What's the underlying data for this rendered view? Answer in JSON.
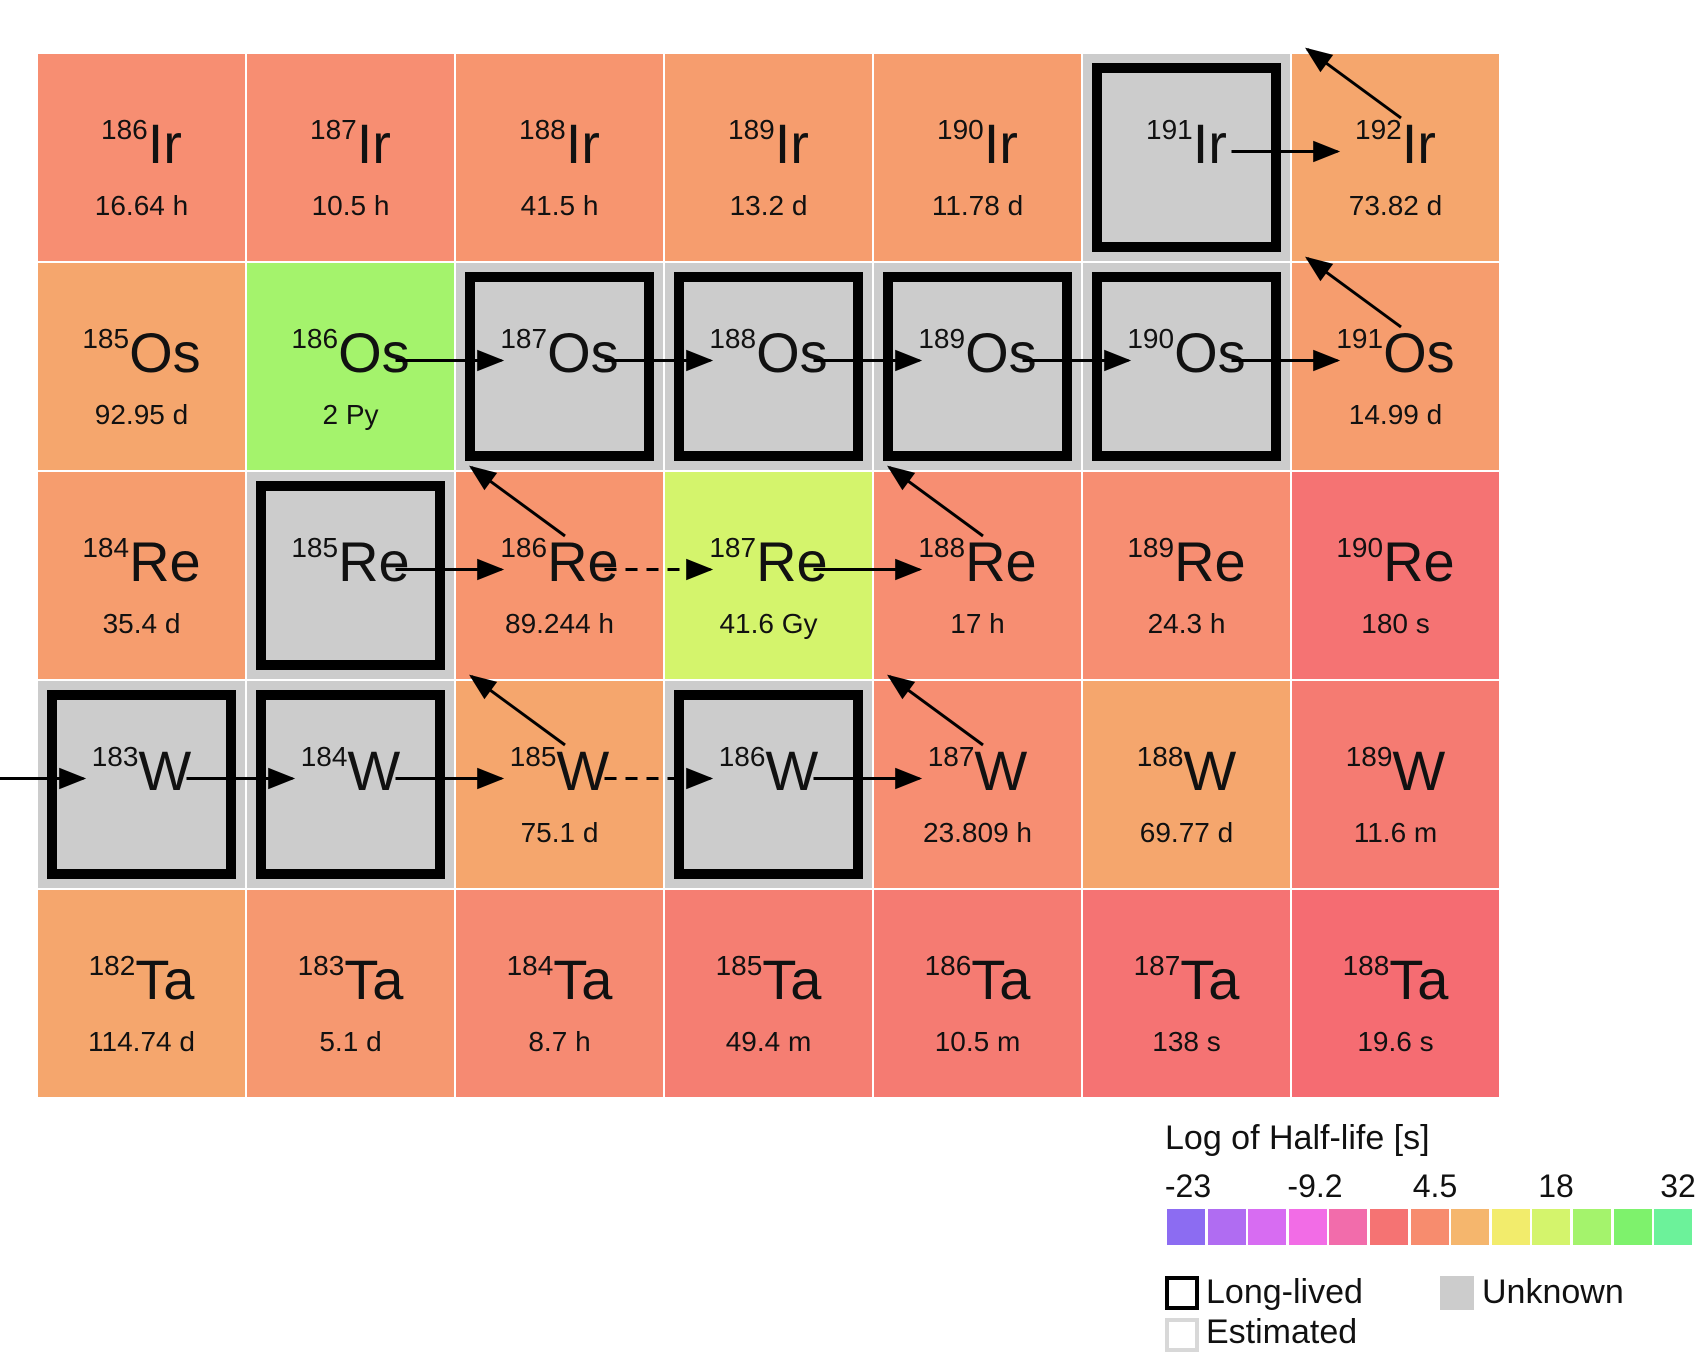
{
  "diagram": {
    "rows": [
      {
        "element": "Ir",
        "cells": [
          {
            "mass": "186",
            "halflife": "16.64 h",
            "color": "#f78e72"
          },
          {
            "mass": "187",
            "halflife": "10.5 h",
            "color": "#f78e72"
          },
          {
            "mass": "188",
            "halflife": "41.5 h",
            "color": "#f7956f"
          },
          {
            "mass": "189",
            "halflife": "13.2 d",
            "color": "#f69d6e"
          },
          {
            "mass": "190",
            "halflife": "11.78 d",
            "color": "#f69d6e"
          },
          {
            "mass": "191",
            "halflife": "",
            "color": "#cccccc",
            "unknown": true,
            "longlived": true
          },
          {
            "mass": "192",
            "halflife": "73.82 d",
            "color": "#f5a66d"
          }
        ]
      },
      {
        "element": "Os",
        "cells": [
          {
            "mass": "185",
            "halflife": "92.95 d",
            "color": "#f5a66d"
          },
          {
            "mass": "186",
            "halflife": "2 Py",
            "color": "#a4f36c"
          },
          {
            "mass": "187",
            "halflife": "",
            "color": "#cccccc",
            "unknown": true,
            "longlived": true
          },
          {
            "mass": "188",
            "halflife": "",
            "color": "#cccccc",
            "unknown": true,
            "longlived": true
          },
          {
            "mass": "189",
            "halflife": "",
            "color": "#cccccc",
            "unknown": true,
            "longlived": true
          },
          {
            "mass": "190",
            "halflife": "",
            "color": "#cccccc",
            "unknown": true,
            "longlived": true
          },
          {
            "mass": "191",
            "halflife": "14.99 d",
            "color": "#f69d6e"
          }
        ]
      },
      {
        "element": "Re",
        "cells": [
          {
            "mass": "184",
            "halflife": "35.4 d",
            "color": "#f69d6e"
          },
          {
            "mass": "185",
            "halflife": "",
            "color": "#cccccc",
            "unknown": true,
            "longlived": true
          },
          {
            "mass": "186",
            "halflife": "89.244 h",
            "color": "#f7956f"
          },
          {
            "mass": "187",
            "halflife": "41.6 Gy",
            "color": "#d4f46c"
          },
          {
            "mass": "188",
            "halflife": "17 h",
            "color": "#f78e72"
          },
          {
            "mass": "189",
            "halflife": "24.3 h",
            "color": "#f78e72"
          },
          {
            "mass": "190",
            "halflife": "180 s",
            "color": "#f57373"
          }
        ]
      },
      {
        "element": "W",
        "cells": [
          {
            "mass": "183",
            "halflife": "",
            "color": "#cccccc",
            "unknown": true,
            "longlived": true
          },
          {
            "mass": "184",
            "halflife": "",
            "color": "#cccccc",
            "unknown": true,
            "longlived": true
          },
          {
            "mass": "185",
            "halflife": "75.1 d",
            "color": "#f5a66d"
          },
          {
            "mass": "186",
            "halflife": "",
            "color": "#cccccc",
            "unknown": true,
            "longlived": true
          },
          {
            "mass": "187",
            "halflife": "23.809 h",
            "color": "#f78e72"
          },
          {
            "mass": "188",
            "halflife": "69.77 d",
            "color": "#f5a66d"
          },
          {
            "mass": "189",
            "halflife": "11.6 m",
            "color": "#f57b72"
          }
        ]
      },
      {
        "element": "Ta",
        "cells": [
          {
            "mass": "182",
            "halflife": "114.74 d",
            "color": "#f5a66d"
          },
          {
            "mass": "183",
            "halflife": "5.1 d",
            "color": "#f69870"
          },
          {
            "mass": "184",
            "halflife": "8.7 h",
            "color": "#f68a72"
          },
          {
            "mass": "185",
            "halflife": "49.4 m",
            "color": "#f57e72"
          },
          {
            "mass": "186",
            "halflife": "10.5 m",
            "color": "#f57b72"
          },
          {
            "mass": "187",
            "halflife": "138 s",
            "color": "#f57373"
          },
          {
            "mass": "188",
            "halflife": "19.6 s",
            "color": "#f56c72"
          }
        ]
      }
    ],
    "arrows": [
      {
        "from": [
          3,
          -1
        ],
        "to": [
          3,
          0
        ],
        "dashed": false
      },
      {
        "from": [
          3,
          0
        ],
        "to": [
          3,
          1
        ],
        "dashed": false
      },
      {
        "from": [
          3,
          1
        ],
        "to": [
          3,
          2
        ],
        "dashed": false
      },
      {
        "from": [
          3,
          2
        ],
        "to": [
          3,
          3
        ],
        "dashed": true
      },
      {
        "from": [
          3,
          3
        ],
        "to": [
          3,
          4
        ],
        "dashed": false
      },
      {
        "from": [
          3,
          2
        ],
        "to": [
          2,
          1
        ],
        "dashed": false
      },
      {
        "from": [
          3,
          4
        ],
        "to": [
          2,
          3
        ],
        "dashed": false
      },
      {
        "from": [
          2,
          1
        ],
        "to": [
          2,
          2
        ],
        "dashed": false
      },
      {
        "from": [
          2,
          2
        ],
        "to": [
          2,
          3
        ],
        "dashed": true
      },
      {
        "from": [
          2,
          3
        ],
        "to": [
          2,
          4
        ],
        "dashed": false
      },
      {
        "from": [
          2,
          2
        ],
        "to": [
          1,
          1
        ],
        "dashed": false
      },
      {
        "from": [
          2,
          4
        ],
        "to": [
          1,
          3
        ],
        "dashed": false
      },
      {
        "from": [
          1,
          1
        ],
        "to": [
          1,
          2
        ],
        "dashed": false
      },
      {
        "from": [
          1,
          2
        ],
        "to": [
          1,
          3
        ],
        "dashed": false
      },
      {
        "from": [
          1,
          3
        ],
        "to": [
          1,
          4
        ],
        "dashed": false
      },
      {
        "from": [
          1,
          4
        ],
        "to": [
          1,
          5
        ],
        "dashed": false
      },
      {
        "from": [
          1,
          5
        ],
        "to": [
          1,
          6
        ],
        "dashed": false
      },
      {
        "from": [
          1,
          6
        ],
        "to": [
          0,
          5
        ],
        "dashed": false
      },
      {
        "from": [
          0,
          5
        ],
        "to": [
          0,
          6
        ],
        "dashed": false
      },
      {
        "from": [
          0,
          6
        ],
        "to": [
          -1,
          5
        ],
        "dashed": false
      }
    ]
  },
  "legend": {
    "title": "Log of Half-life [s]",
    "scale_labels": [
      "-23",
      "-9.2",
      "4.5",
      "18",
      "32"
    ],
    "swatches": [
      "#8c6cf2",
      "#b06cf2",
      "#d76cf2",
      "#f26ce6",
      "#f26cab",
      "#f57373",
      "#f78c6e",
      "#f5b66d",
      "#f2ec6c",
      "#d4f46c",
      "#a4f36c",
      "#7ef26c",
      "#6cf29a"
    ],
    "long_lived_label": "Long-lived",
    "estimated_label": "Estimated",
    "unknown_label": "Unknown",
    "unknown_color": "#cccccc"
  }
}
